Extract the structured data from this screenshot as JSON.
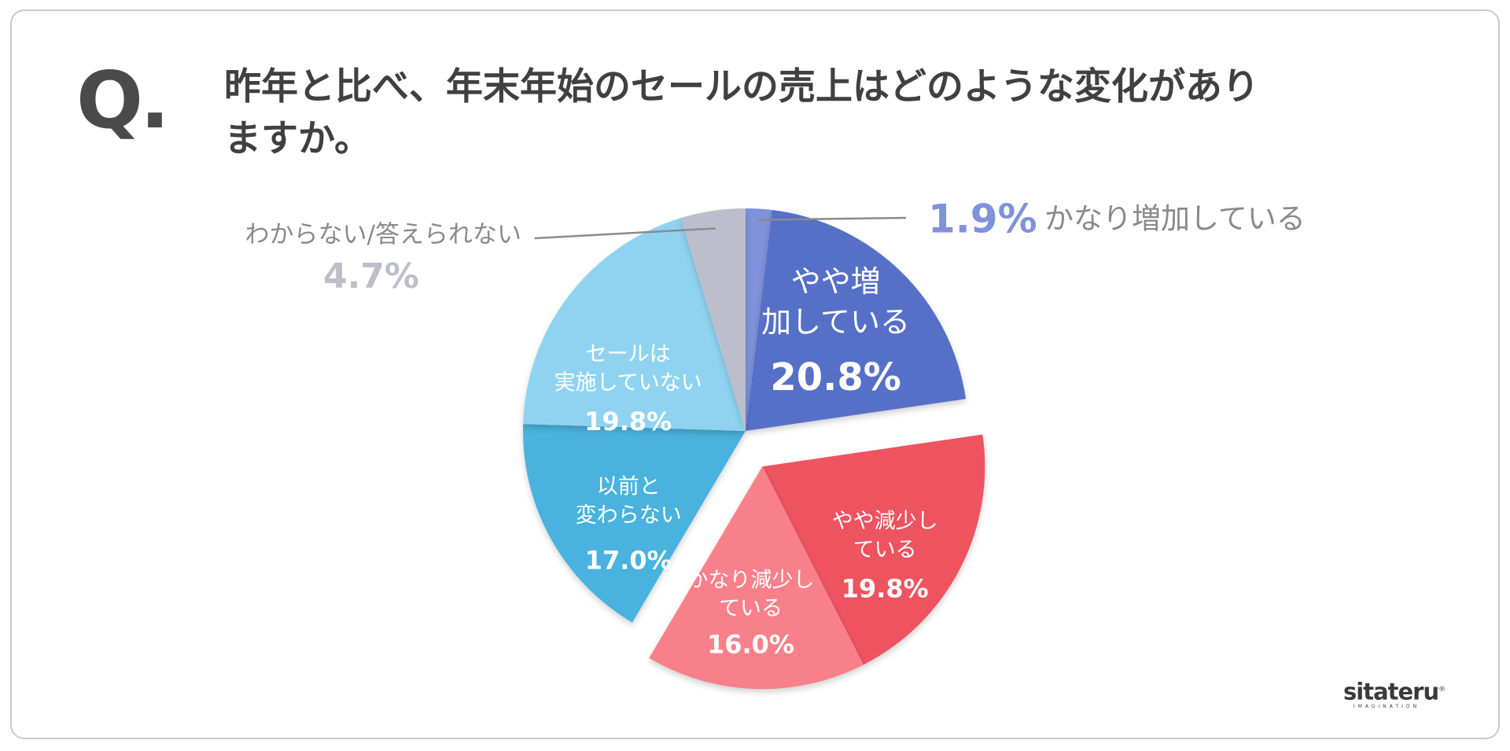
{
  "question_mark": "Q.",
  "question": "昨年と比べ、年末年始のセールの売上はどのような変化がありますか。",
  "logo": {
    "name": "sitateru",
    "registered": "®",
    "tagline": "IMAGINATION"
  },
  "chart_data": {
    "type": "pie",
    "start_angle_deg": 0,
    "direction": "clockwise",
    "slices": [
      {
        "label": "かなり増加している",
        "value": 1.9,
        "display": "1.9%",
        "color": "#7f92db",
        "label_position": "outside-right",
        "exploded": false
      },
      {
        "label": "やや増加している",
        "value": 20.8,
        "display": "20.8%",
        "color": "#5670c8",
        "label_position": "inside",
        "exploded": false
      },
      {
        "label": "やや減少している",
        "value": 19.8,
        "display": "19.8%",
        "color": "#ee5360",
        "label_position": "inside",
        "exploded": true
      },
      {
        "label": "かなり減少している",
        "value": 16.0,
        "display": "16.0%",
        "color": "#f8808a",
        "label_position": "inside",
        "exploded": true
      },
      {
        "label": "以前と変わらない",
        "value": 17.0,
        "display": "17.0%",
        "color": "#4ab2de",
        "label_position": "inside",
        "exploded": false
      },
      {
        "label": "セールは実施していない",
        "value": 19.8,
        "display": "19.8%",
        "color": "#8fd3f1",
        "label_position": "inside",
        "exploded": false
      },
      {
        "label": "わからない/答えられない",
        "value": 4.7,
        "display": "4.7%",
        "color": "#bcbfcb",
        "label_position": "outside-left",
        "exploded": false
      }
    ],
    "outside_label_color": "#8a8a8a",
    "leader_line_color": "#8a8a8a"
  }
}
